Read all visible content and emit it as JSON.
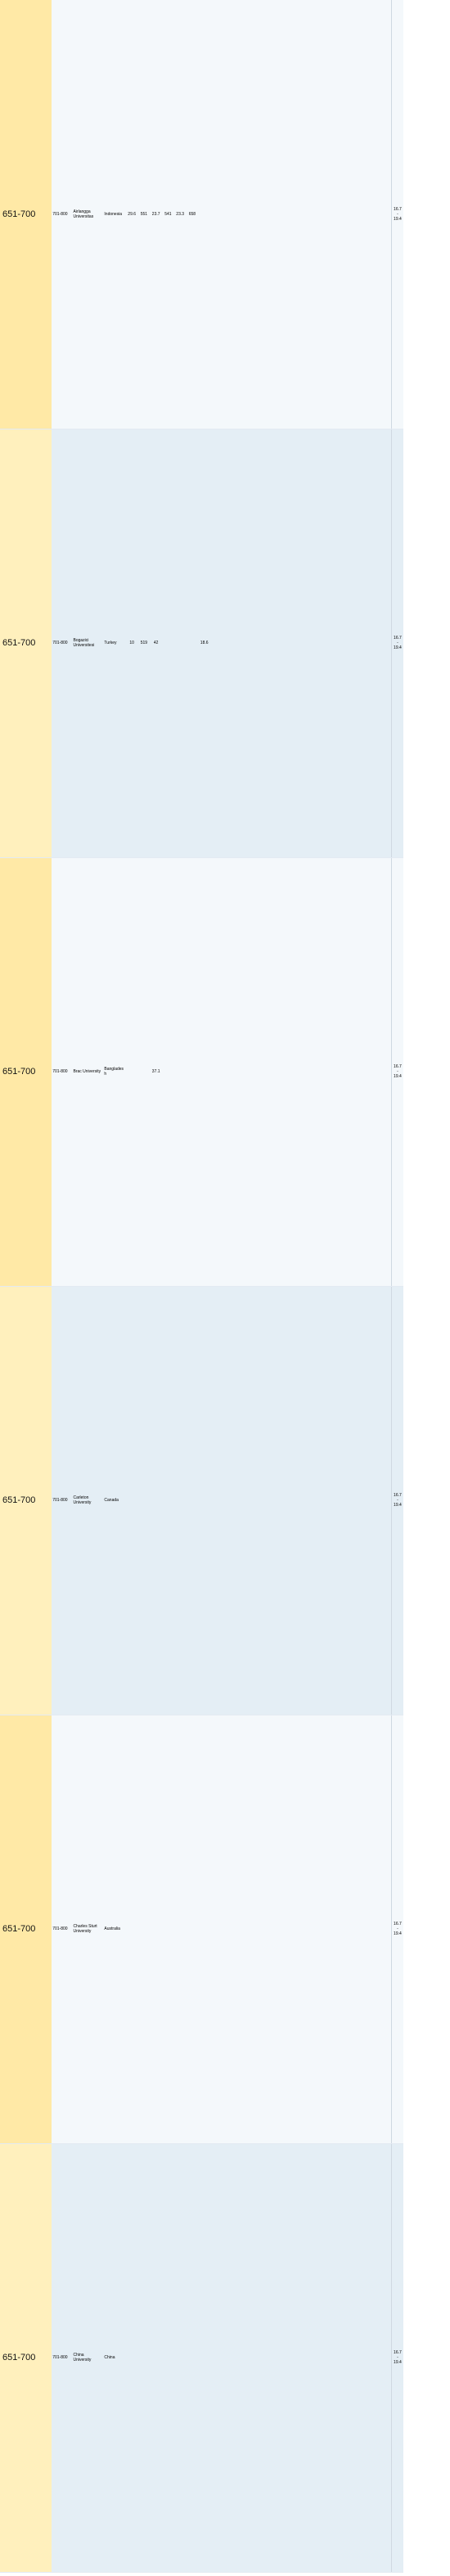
{
  "rows": [
    {
      "rank": "651-700",
      "prev": "701-800",
      "name": "Airlangga Universitas",
      "country": "Indonesia",
      "v1": "29.6",
      "r1": "551",
      "v2": "23.7",
      "r2": "541",
      "v3": "23.3",
      "r3": "658",
      "v4": "",
      "r4": "",
      "v5": "",
      "r5": "",
      "v6": "",
      "r6": "",
      "v7": "",
      "r7": "",
      "score": "16.7 - 19.4",
      "color": "normal"
    },
    {
      "rank": "651-700",
      "prev": "701-800",
      "name": "Bogazici Universitesi",
      "country": "Turkey",
      "v1": "10",
      "r1": "519",
      "v2": "42",
      "r2": "",
      "v3": "",
      "r3": "",
      "v4": "18.6",
      "r4": "",
      "v5": "",
      "r5": "",
      "v6": "",
      "r6": "",
      "v7": "",
      "r7": "",
      "score": "16.7 - 19.4",
      "color": "normal"
    },
    {
      "rank": "651-700",
      "prev": "701-800",
      "name": "Brac University",
      "country": "Bangladesh",
      "v1": "",
      "r1": "",
      "v2": "37.1",
      "r2": "",
      "v3": "",
      "r3": "",
      "v4": "",
      "r4": "",
      "v5": "",
      "r5": "",
      "v6": "",
      "r6": "",
      "v7": "",
      "r7": "",
      "score": "16.7 - 19.4",
      "color": "normal"
    },
    {
      "rank": "651-700",
      "prev": "701-800",
      "name": "Carleton University",
      "country": "Canada",
      "v1": "",
      "r1": "",
      "v2": "",
      "r2": "",
      "v3": "",
      "r3": "",
      "v4": "",
      "r4": "",
      "v5": "",
      "r5": "",
      "v6": "",
      "r6": "",
      "v7": "",
      "r7": "",
      "score": "16.7 - 19.4",
      "color": "normal"
    },
    {
      "rank": "651-700",
      "prev": "701-800",
      "name": "Charles Sturt University",
      "country": "Australia",
      "v1": "",
      "r1": "",
      "v2": "",
      "r2": "",
      "v3": "",
      "r3": "",
      "v4": "",
      "r4": "",
      "v5": "",
      "r5": "",
      "v6": "",
      "r6": "",
      "v7": "",
      "r7": "",
      "score": "16.7 - 19.4",
      "color": "normal"
    },
    {
      "rank": "651-700",
      "prev": "701-800",
      "name": "China University",
      "country": "China",
      "v1": "",
      "r1": "",
      "v2": "",
      "r2": "",
      "v3": "",
      "r3": "",
      "v4": "",
      "r4": "",
      "v5": "",
      "r5": "",
      "v6": "",
      "r6": "",
      "v7": "",
      "r7": "",
      "score": "16.7 - 19.4",
      "color": "normal"
    }
  ]
}
